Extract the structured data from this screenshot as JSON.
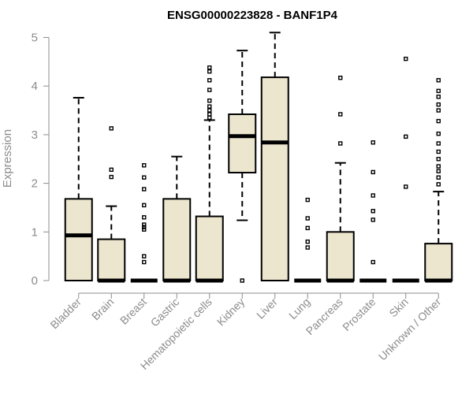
{
  "chart_data": {
    "type": "boxplot",
    "title": "ENSG00000223828 - BANF1P4",
    "ylabel": "Expression",
    "xlabel": "",
    "ylim": [
      0,
      5
    ],
    "yticks": [
      0,
      1,
      2,
      3,
      4,
      5
    ],
    "categories": [
      "Bladder",
      "Brain",
      "Breast",
      "Gastric",
      "Hematopoietic cells",
      "Kidney",
      "Liver",
      "Lung",
      "Pancreas",
      "Prostate",
      "Skin",
      "Unknown / Other"
    ],
    "colors": {
      "box_fill": "#ece6cf",
      "stroke": "#000000",
      "axis_text": "#8c8c8c"
    },
    "boxes": [
      {
        "q1": 0,
        "median": 0.93,
        "q3": 1.68,
        "whisker_low": 0,
        "whisker_high": 3.76,
        "outliers": []
      },
      {
        "q1": 0,
        "median": 0,
        "q3": 0.85,
        "whisker_low": 0,
        "whisker_high": 1.53,
        "outliers": [
          2.13,
          2.28,
          3.13
        ]
      },
      {
        "q1": 0,
        "median": 0,
        "q3": 0,
        "whisker_low": 0,
        "whisker_high": 0,
        "outliers": [
          0.38,
          0.5,
          1.05,
          1.1,
          1.15,
          1.3,
          1.55,
          1.88,
          2.12,
          2.37
        ]
      },
      {
        "q1": 0,
        "median": 0,
        "q3": 1.68,
        "whisker_low": 0,
        "whisker_high": 2.55,
        "outliers": []
      },
      {
        "q1": 0,
        "median": 0,
        "q3": 1.32,
        "whisker_low": 0,
        "whisker_high": 3.3,
        "outliers": [
          3.35,
          3.42,
          3.5,
          3.58,
          3.7,
          3.92,
          4.12,
          4.3,
          4.38
        ]
      },
      {
        "q1": 2.22,
        "median": 2.97,
        "q3": 3.42,
        "whisker_low": 1.24,
        "whisker_high": 4.73,
        "outliers": [
          0
        ]
      },
      {
        "q1": 0,
        "median": 2.84,
        "q3": 4.18,
        "whisker_low": 0,
        "whisker_high": 5.1,
        "outliers": []
      },
      {
        "q1": 0,
        "median": 0,
        "q3": 0,
        "whisker_low": 0,
        "whisker_high": 0,
        "outliers": [
          0.68,
          0.8,
          1.08,
          1.28,
          1.66
        ]
      },
      {
        "q1": 0,
        "median": 0,
        "q3": 1.0,
        "whisker_low": 0,
        "whisker_high": 2.42,
        "outliers": [
          2.82,
          3.42,
          4.17
        ]
      },
      {
        "q1": 0,
        "median": 0,
        "q3": 0,
        "whisker_low": 0,
        "whisker_high": 0,
        "outliers": [
          0.38,
          1.25,
          1.43,
          1.75,
          2.23,
          2.84
        ]
      },
      {
        "q1": 0,
        "median": 0,
        "q3": 0,
        "whisker_low": 0,
        "whisker_high": 0,
        "outliers": [
          1.93,
          2.96,
          4.56
        ]
      },
      {
        "q1": 0,
        "median": 0,
        "q3": 0.76,
        "whisker_low": 0,
        "whisker_high": 1.83,
        "outliers": [
          1.98,
          2.12,
          2.25,
          2.35,
          2.5,
          2.65,
          2.82,
          3.02,
          3.28,
          3.5,
          3.62,
          3.78,
          3.9,
          4.12
        ]
      }
    ]
  }
}
